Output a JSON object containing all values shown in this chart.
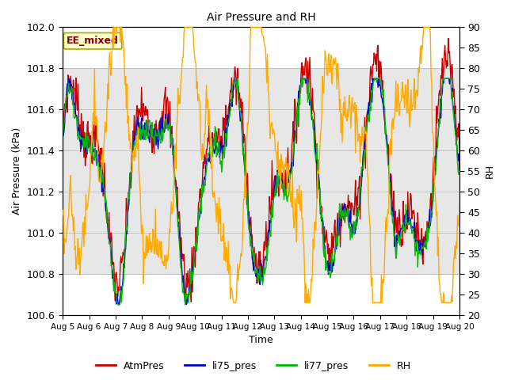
{
  "title": "Air Pressure and RH",
  "ylabel_left": "Air Pressure (kPa)",
  "ylabel_right": "RH",
  "xlabel": "Time",
  "ylim_left": [
    100.6,
    102.0
  ],
  "ylim_right": [
    20,
    90
  ],
  "shade_ylo": 100.8,
  "shade_yhi": 101.8,
  "xtick_labels": [
    "Aug 5",
    "Aug 6",
    "Aug 7",
    "Aug 8",
    "Aug 9",
    "Aug 10",
    "Aug 11",
    "Aug 12",
    "Aug 13",
    "Aug 14",
    "Aug 15",
    "Aug 16",
    "Aug 17",
    "Aug 18",
    "Aug 19",
    "Aug 20"
  ],
  "annotation_text": "EE_mixed",
  "colors": {
    "AtmPres": "#cc0000",
    "li75_pres": "#0000cc",
    "li77_pres": "#00bb00",
    "RH": "#ffaa00"
  },
  "legend_labels": [
    "AtmPres",
    "li75_pres",
    "li77_pres",
    "RH"
  ],
  "background_color": "#ffffff",
  "shade_color": "#d8d8d8",
  "grid_color": "#bbbbbb",
  "yticks_left": [
    100.6,
    100.8,
    101.0,
    101.2,
    101.4,
    101.6,
    101.8,
    102.0
  ],
  "yticks_right": [
    20,
    25,
    30,
    35,
    40,
    45,
    50,
    55,
    60,
    65,
    70,
    75,
    80,
    85,
    90
  ]
}
